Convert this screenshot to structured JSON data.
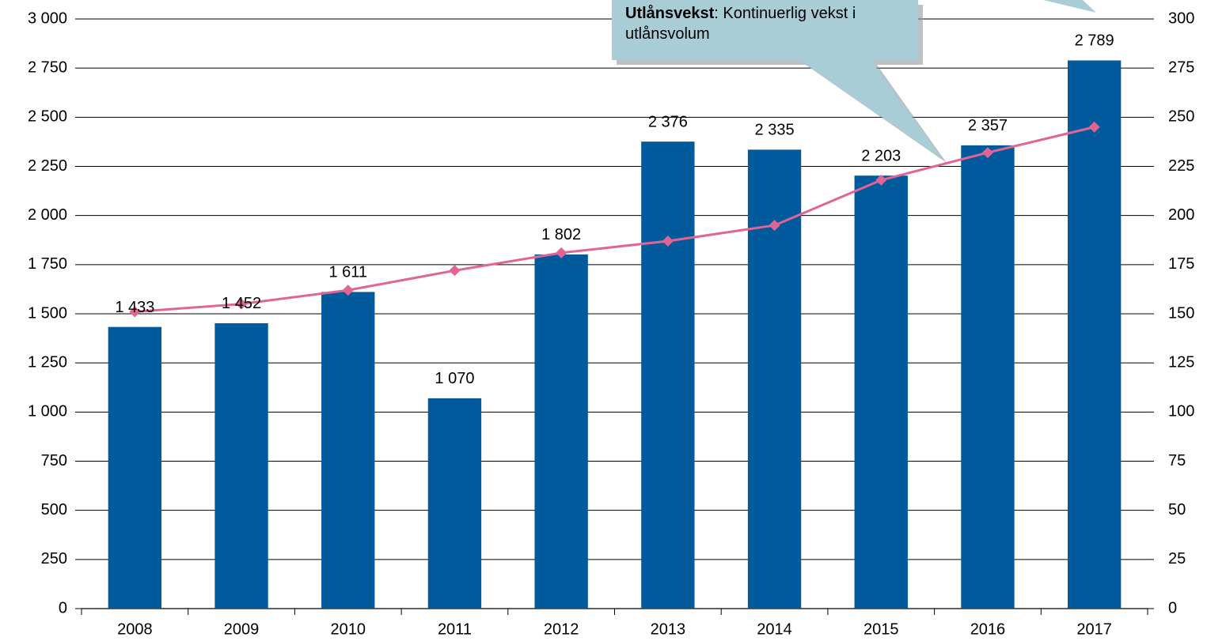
{
  "chart_data": {
    "type": "bar",
    "categories": [
      "2008",
      "2009",
      "2010",
      "2011",
      "2012",
      "2013",
      "2014",
      "2015",
      "2016",
      "2017"
    ],
    "series": [
      {
        "type": "bar",
        "color": "#005a9c",
        "values": [
          1433,
          1452,
          1611,
          1070,
          1802,
          2376,
          2335,
          2203,
          2357,
          2789
        ],
        "value_labels": [
          "1 433",
          "1 452",
          "1 611",
          "1 070",
          "1 802",
          "2 376",
          "2 335",
          "2 203",
          "2 357",
          "2 789"
        ]
      },
      {
        "type": "line",
        "axis": "y2",
        "color": "#e06595",
        "values": [
          151,
          155,
          162,
          172,
          181,
          187,
          195,
          218,
          232,
          245
        ]
      }
    ],
    "ylim": [
      0,
      3000
    ],
    "yticks": [
      0,
      250,
      500,
      750,
      {
        "value": 1000,
        "label": "1 000"
      },
      {
        "value": 1250,
        "label": "1 250"
      },
      {
        "value": 1500,
        "label": "1 500"
      },
      {
        "value": 1750,
        "label": "1 750"
      },
      {
        "value": 2000,
        "label": "2 000"
      },
      {
        "value": 2250,
        "label": "2 250"
      },
      {
        "value": 2500,
        "label": "2 500"
      },
      {
        "value": 2750,
        "label": "2 750"
      },
      {
        "value": 3000,
        "label": "3 000"
      }
    ],
    "y2lim": [
      0,
      300
    ],
    "y2ticks": [
      0,
      25,
      50,
      75,
      100,
      125,
      150,
      175,
      200,
      225,
      250,
      275,
      300
    ],
    "grid": true,
    "annotation": {
      "bold": "Utlånsvekst",
      "text": ": Kontinuerlig vekst i utlånsvolum"
    }
  }
}
